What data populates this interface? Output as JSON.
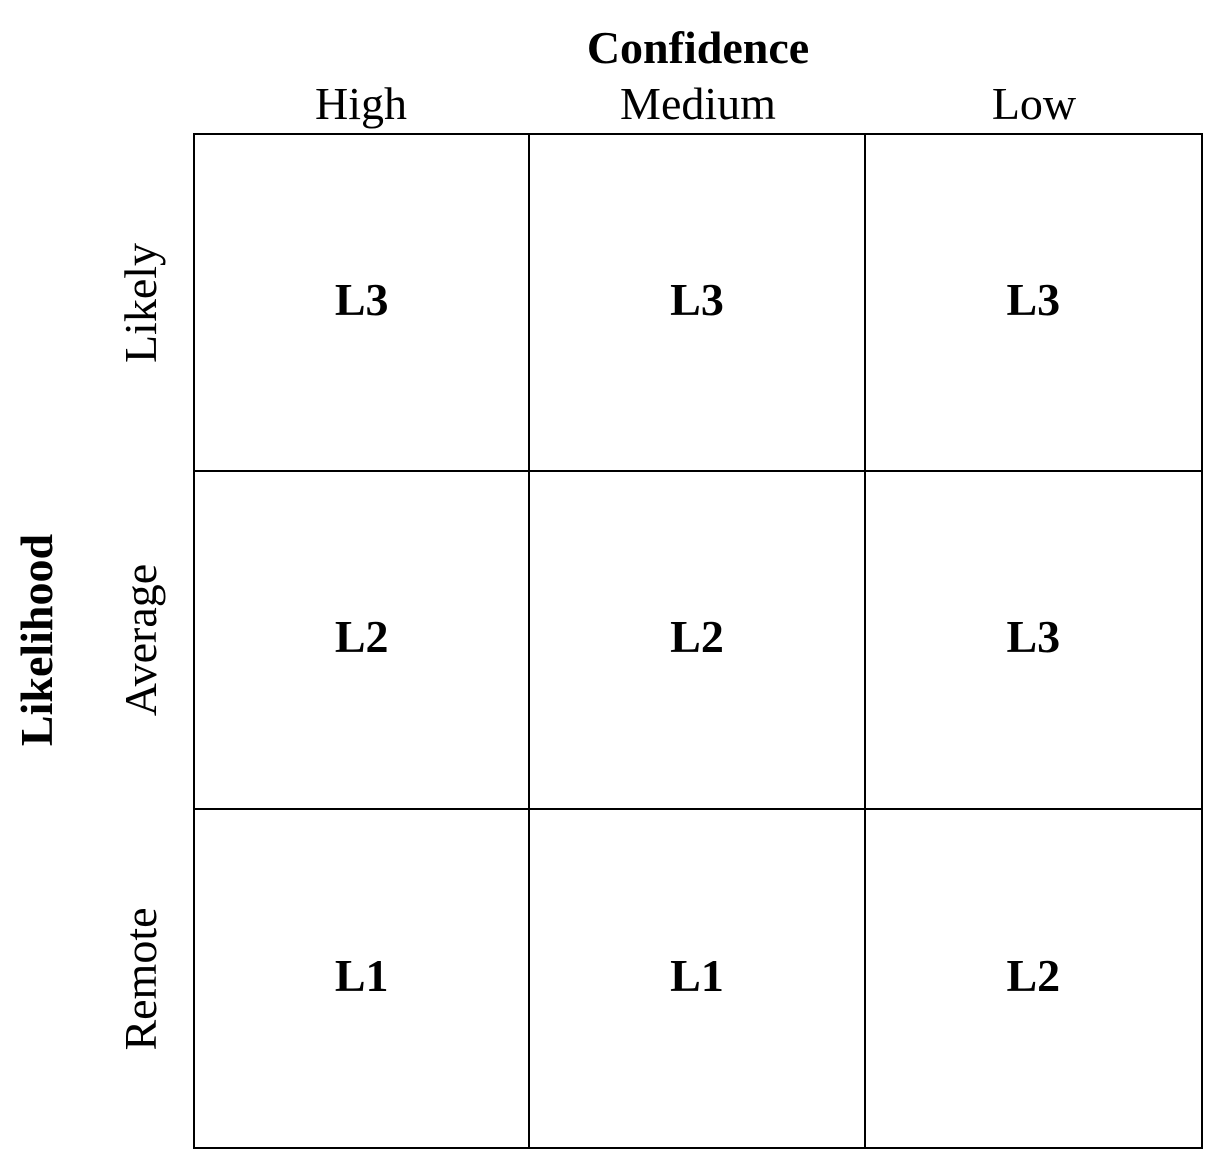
{
  "diagram": {
    "column_axis_title": "Confidence",
    "row_axis_title": "Likelihood",
    "columns": [
      "High",
      "Medium",
      "Low"
    ],
    "rows": [
      "Likely",
      "Average",
      "Remote"
    ],
    "cells": [
      [
        "L3",
        "L3",
        "L3"
      ],
      [
        "L2",
        "L2",
        "L3"
      ],
      [
        "L1",
        "L1",
        "L2"
      ]
    ]
  },
  "colors": {
    "text": "#000000",
    "grid_lines": "#000000",
    "background": "#ffffff"
  }
}
